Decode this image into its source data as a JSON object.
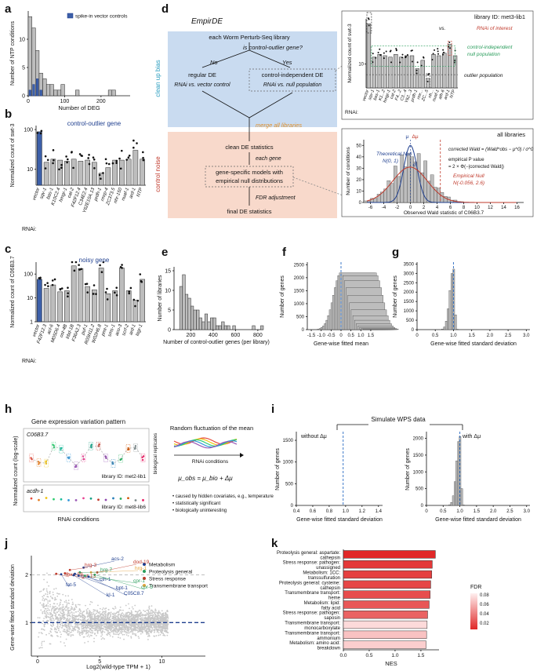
{
  "panel_labels": [
    "a",
    "b",
    "c",
    "d",
    "e",
    "f",
    "g",
    "h",
    "i",
    "j",
    "k"
  ],
  "panel_a": {
    "chart_data": {
      "type": "bar",
      "xlabel": "Number of DEG",
      "ylabel": "Number of NTP conditions",
      "xticks": [
        "0",
        "100",
        "200"
      ],
      "yticks": [
        "0",
        "5",
        "10"
      ],
      "legend": "spike-in vector controls",
      "bins_start": 0,
      "bin_width": 10,
      "counts": [
        14,
        12,
        8,
        4,
        3,
        2,
        2,
        1,
        1,
        2,
        0,
        0,
        0,
        1,
        0,
        0,
        0,
        0,
        0,
        0,
        0,
        0,
        1,
        1
      ],
      "spike_bins": [
        0,
        1,
        2,
        3
      ],
      "spike_counts": [
        1,
        2,
        3,
        1
      ]
    }
  },
  "panel_b": {
    "title": "control-outlier gene",
    "ylabel": "Normalized count of swt-3",
    "rnai_label": "RNAi:",
    "chart_data": {
      "type": "bar",
      "categories": [
        "vector",
        "sqv-1",
        "bas-1",
        "K10C2.4",
        "hmgr-1",
        "cat-2",
        "F42F12.4",
        "C34E2.4",
        "Y62E10A.13",
        "prdh-1",
        "rmrp-4",
        "ZC373.5",
        "nhr-150",
        "nuaf-1",
        "ard-1",
        "NTP"
      ],
      "values": [
        88,
        15,
        18,
        17,
        16,
        18,
        16,
        17,
        15,
        8,
        11,
        17,
        17,
        18,
        30,
        18
      ],
      "yticks": [
        "10",
        "100"
      ]
    }
  },
  "panel_c": {
    "title": "noisy gene",
    "ylabel": "Normalized count of C06B3.7",
    "rnai_label": "RNAi:",
    "chart_data": {
      "type": "bar",
      "categories": [
        "vector",
        "F42F12.3",
        "acl-6",
        "M05D6.4",
        "ost-4B",
        "lrbd-1B",
        "F36A2.3",
        "puf-1",
        "R05H11.2",
        "W02H6.8",
        "pmt-1",
        "sms-1",
        "aco-3",
        "scrf-2",
        "ard-1",
        "lagr-1"
      ],
      "values": [
        60,
        25,
        35,
        18,
        20,
        220,
        170,
        30,
        22,
        180,
        15,
        20,
        180,
        20,
        8,
        60
      ],
      "yticks": [
        "1",
        "10",
        "100"
      ]
    }
  },
  "panel_d": {
    "title": "EmpirDE",
    "side_cleanup": "clean up bias",
    "side_noise": "control noise",
    "box_each": "each Worm Perturb-Seq library",
    "question": "is control-outlier gene?",
    "no": "No",
    "yes": "Yes",
    "regular": "regular DE",
    "regular_sub": "RNAi vs. vector control",
    "independent": "control-independent DE",
    "independent_sub": "RNAi vs. null population",
    "merge": "merge all libraries",
    "clean": "clean DE statistics",
    "each_gene": "each gene",
    "gene_models": "gene-specific models with empirical null distributions",
    "fdr": "FDR adjustment",
    "final": "final DE statistics",
    "inset1": {
      "title": "library ID: met3-lib1",
      "ylabel": "Normalized count of swt-3",
      "rnai_label": "RNAi:",
      "rnai_interest": "RNAi of interest",
      "vs": "vs.",
      "null_pop": "control-independent null population",
      "outlier_pop": "outlier population",
      "categories": [
        "vector",
        "sqv-1",
        "bas-1",
        "K1...2",
        "hmgr-1",
        "cat-2",
        "F4...2",
        "C3...4",
        "Y62...3",
        "prdh-1",
        "rmr...",
        "ZC...5",
        "nh...",
        "nuaf-1",
        "ath-6",
        "ard-1",
        "NTP"
      ],
      "values": [
        70,
        14,
        16,
        15,
        14,
        16,
        14,
        15,
        15,
        8,
        12,
        5,
        16,
        15,
        17,
        26,
        15
      ],
      "yticks": [
        "10"
      ]
    },
    "inset2": {
      "title": "all libraries",
      "ylabel": "Number of conditions",
      "xlabel": "Observed Wald statistic of C06B3.7",
      "theo": "Theoretical Null",
      "theo2": "N(0, 1)",
      "emp": "Empirical Null",
      "emp2": "N(-0.056, 2.6)",
      "mu": "μ",
      "dmu": "Δμ",
      "sigma": "σ",
      "formula1": "corrected Wald = (Wald^obs − μ^0) / σ^0",
      "formula2": "empirical P value",
      "formula3": "= 2 × Φ(−|corrected Wald|)",
      "xticks": [
        "-6",
        "-4",
        "-2",
        "0",
        "2",
        "4",
        "6",
        "8",
        "10",
        "12",
        "14",
        "16"
      ],
      "yticks": [
        "0",
        "10",
        "20",
        "30",
        "40",
        "50"
      ]
    }
  },
  "panel_e": {
    "chart_data": {
      "type": "bar",
      "xlabel": "Number of control-outlier genes (per library)",
      "ylabel": "Number of libraries",
      "xticks": [
        "200",
        "400",
        "600",
        "800"
      ],
      "yticks": [
        "0",
        "5",
        "10",
        "15"
      ],
      "bin_start": 100,
      "bin_width": 25,
      "counts": [
        11,
        14,
        9,
        8,
        6,
        5,
        5,
        3,
        2,
        4,
        2,
        3,
        3,
        1,
        1,
        2,
        1,
        1,
        0,
        1,
        0,
        0,
        0,
        0,
        0,
        0,
        1,
        0,
        0,
        1
      ]
    }
  },
  "panel_f": {
    "chart_data": {
      "type": "bar",
      "xlabel": "Gene-wise fitted mean",
      "ylabel": "Number of genes",
      "xticks": [
        "-1.5",
        "-1.0",
        "-0.5",
        "0",
        "0.5",
        "1.0",
        "1.5"
      ],
      "yticks": [
        "0",
        "500",
        "1000",
        "1500",
        "2000",
        "2500"
      ],
      "hist_center": 0,
      "hist_sd": 0.38,
      "peak": 2200
    }
  },
  "panel_g": {
    "chart_data": {
      "type": "bar",
      "xlabel": "Gene-wise fitted standard deviation",
      "ylabel": "Number of genes",
      "xticks": [
        "0",
        "0.5",
        "1.0",
        "1.5",
        "2.0",
        "2.5",
        "3.0"
      ],
      "yticks": [
        "0",
        "500",
        "1000",
        "1500",
        "2000",
        "2500",
        "3000",
        "3500"
      ],
      "peak_at": 1.0,
      "peak": 3300
    }
  },
  "panel_h": {
    "title": "Gene expression variation pattern",
    "gene1": "C06B3.7",
    "gene2": "acdh-1",
    "lib1": "library ID: met2-lib1",
    "lib2": "library ID: met8-lib6",
    "ylabel": "Normalized count (log-scale)",
    "xlabel": "RNAi conditions",
    "bio_rep": "biological replicates",
    "random": "Random fluctuation of the mean",
    "rnai_cond": "RNAi conditions",
    "formula": "μ_obs = μ_bio + Δμ",
    "bullets": [
      "caused by hidden covariates, e.g., temperature",
      "statistically significant",
      "biologically uninteresting"
    ]
  },
  "panel_i": {
    "title": "Simulate WPS data",
    "left_label": "without Δμ",
    "right_label": "with Δμ",
    "xlabel": "Gene-wise fitted standard deviation",
    "ylabel": "Number of genes",
    "left_xticks": [
      "0.4",
      "0.6",
      "0.8",
      "1.0",
      "1.2",
      "1.4"
    ],
    "right_xticks": [
      "0",
      "0.5",
      "1.0",
      "1.5",
      "2.0",
      "2.5",
      "3.0"
    ],
    "left_yticks": [
      "0",
      "500",
      "1000",
      "1500"
    ],
    "right_yticks": [
      "0",
      "500",
      "1000",
      "1500",
      "2000"
    ]
  },
  "panel_j": {
    "chart_data": {
      "type": "scatter",
      "xlabel": "Log2(wild-type TPM + 1)",
      "ylabel": "Gene-wise fitted standard deviation",
      "xticks": [
        "0",
        "5",
        "10"
      ],
      "yticks": [
        "1",
        "2"
      ],
      "legend": [
        {
          "name": "Metabolism",
          "color": "#1f3f8f"
        },
        {
          "name": "Proteolysis general",
          "color": "#2a9d5c"
        },
        {
          "name": "Stress response",
          "color": "#c0392b"
        },
        {
          "name": "Transmembrane transport",
          "color": "#e6a23c"
        }
      ],
      "labels": [
        {
          "text": "acs-2",
          "color": "#1f3f8f"
        },
        {
          "text": "dod-19",
          "color": "#c0392b"
        },
        {
          "text": "hrg-3",
          "color": "#c0392b"
        },
        {
          "text": "hrg-1",
          "color": "#e6a23c"
        },
        {
          "text": "hrg-7",
          "color": "#2a9d5c"
        },
        {
          "text": "fbxo-58",
          "color": "#c0392b"
        },
        {
          "text": "gst-13",
          "color": "#c0392b"
        },
        {
          "text": "cth-1",
          "color": "#1f3f8f"
        },
        {
          "text": "cpr-1",
          "color": "#2a9d5c"
        },
        {
          "text": "cpr-5",
          "color": "#2a9d5c"
        },
        {
          "text": "fat-5",
          "color": "#1f3f8f"
        },
        {
          "text": "bpt-1",
          "color": "#1f3f8f"
        },
        {
          "text": "C05C8.7",
          "color": "#1f3f8f"
        },
        {
          "text": "kl-1",
          "color": "#1f3f8f"
        }
      ]
    }
  },
  "panel_k": {
    "chart_data": {
      "type": "bar",
      "xlabel": "NES",
      "xticks": [
        "0.0",
        "0.5",
        "1.0",
        "1.5"
      ],
      "legend_title": "FDR",
      "legend_ticks": [
        "0.08",
        "0.06",
        "0.04",
        "0.02"
      ],
      "categories": [
        "Proteolysis general: aspartate: cathepsin",
        "Stress response: pathogen: unassigned",
        "Metabolism: 1CC: transsulfuration",
        "Proteolysis general: cysteine: cathepsin",
        "Transmembrane transport: heme",
        "Metabolism: lipid: fatty acid",
        "Stress response: pathogen: saposin",
        "Transmembrane transport: monocarboxylate",
        "Transmembrane transport: ammonium",
        "Metabolism: amino acid: breakdown"
      ],
      "values": [
        1.78,
        1.72,
        1.71,
        1.69,
        1.68,
        1.66,
        1.63,
        1.62,
        1.61,
        1.6
      ],
      "fdr": [
        0.005,
        0.012,
        0.015,
        0.018,
        0.02,
        0.025,
        0.03,
        0.08,
        0.07,
        0.075
      ]
    }
  }
}
